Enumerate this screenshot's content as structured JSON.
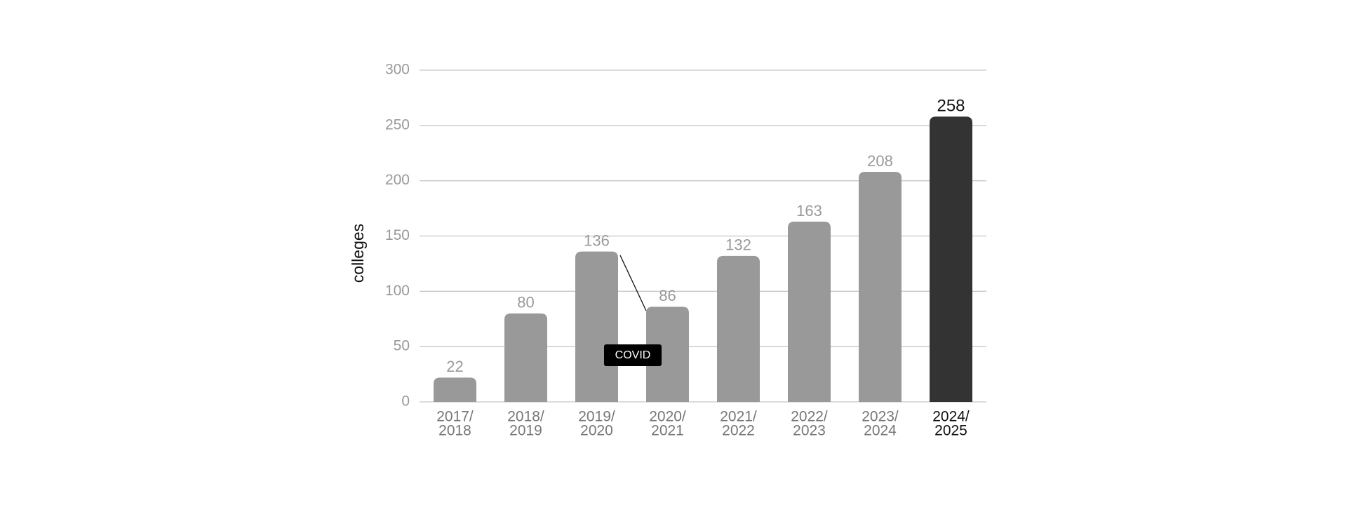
{
  "chart_data": {
    "type": "bar",
    "y_label": "colleges",
    "categories": [
      [
        "2017/",
        "2018"
      ],
      [
        "2018/",
        "2019"
      ],
      [
        "2019/",
        "2020"
      ],
      [
        "2020/",
        "2021"
      ],
      [
        "2021/",
        "2022"
      ],
      [
        "2022/",
        "2023"
      ],
      [
        "2023/",
        "2024"
      ],
      [
        "2024/",
        "2025"
      ]
    ],
    "values": [
      22,
      80,
      136,
      86,
      132,
      163,
      208,
      258
    ],
    "colors": [
      "#999999",
      "#999999",
      "#999999",
      "#999999",
      "#999999",
      "#999999",
      "#999999",
      "#333333"
    ],
    "ylim": [
      0,
      300
    ],
    "yticks": [
      0,
      50,
      100,
      150,
      200,
      250,
      300
    ],
    "grid": true,
    "annotation": "COVID"
  }
}
